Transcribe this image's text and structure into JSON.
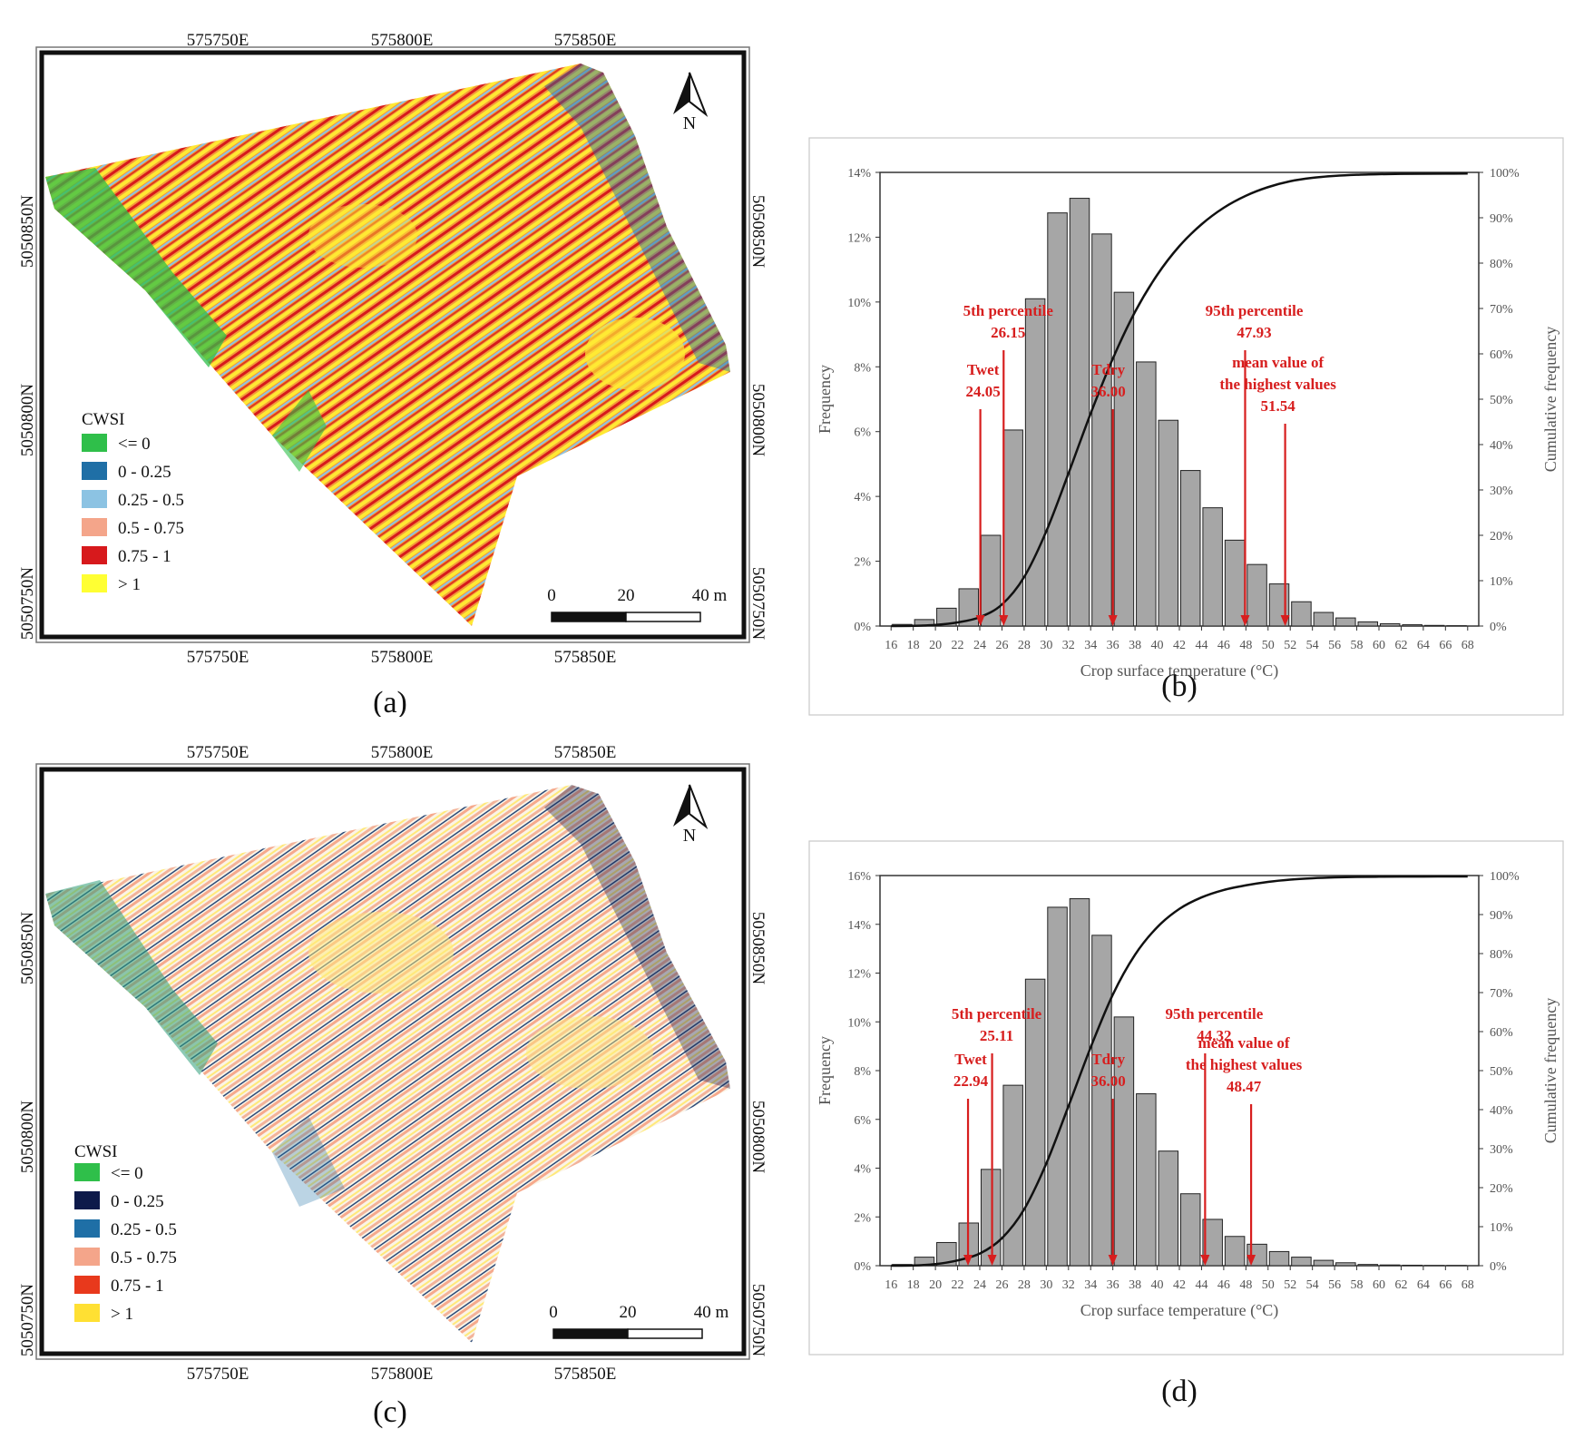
{
  "panels": {
    "a": {
      "label": "(a)",
      "coords_top": [
        "575750E",
        "575800E",
        "575850E"
      ],
      "coords_bottom": [
        "575750E",
        "575800E",
        "575850E"
      ],
      "coords_left": [
        "5050850N",
        "5050800N",
        "5050750N"
      ],
      "coords_right": [
        "5050850N",
        "5050800N",
        "5050750N"
      ],
      "north": "N",
      "legend_title": "CWSI",
      "legend": [
        {
          "label": "<= 0",
          "color": "#2fbf4a"
        },
        {
          "label": "0 - 0.25",
          "color": "#1f6fa6"
        },
        {
          "label": "0.25 - 0.5",
          "color": "#8cc3e3"
        },
        {
          "label": "0.5 - 0.75",
          "color": "#f4a58a"
        },
        {
          "label": "0.75 - 1",
          "color": "#d7191c"
        },
        {
          "label": "> 1",
          "color": "#ffff33"
        }
      ],
      "scale": [
        "0",
        "20",
        "40 m"
      ]
    },
    "c": {
      "label": "(c)",
      "coords_top": [
        "575750E",
        "575800E",
        "575850E"
      ],
      "coords_bottom": [
        "575750E",
        "575800E",
        "575850E"
      ],
      "coords_left": [
        "5050850N",
        "5050800N",
        "5050750N"
      ],
      "coords_right": [
        "5050850N",
        "5050800N",
        "5050750N"
      ],
      "north": "N",
      "legend_title": "CWSI",
      "legend": [
        {
          "label": "<= 0",
          "color": "#2fbf4a"
        },
        {
          "label": "0 - 0.25",
          "color": "#0d1a4a"
        },
        {
          "label": "0.25 - 0.5",
          "color": "#1f6fa6"
        },
        {
          "label": "0.5 - 0.75",
          "color": "#f4a58a"
        },
        {
          "label": "0.75 - 1",
          "color": "#e8391c"
        },
        {
          "label": "> 1",
          "color": "#ffe033"
        }
      ],
      "scale": [
        "0",
        "20",
        "40 m"
      ]
    }
  },
  "chart_data": [
    {
      "panel": "(b)",
      "type": "bar",
      "xlabel": "Crop surface temperature (°C)",
      "ylabel": "Frequency",
      "y2label": "Cumulative frequency",
      "x_ticks": [
        16,
        18,
        20,
        22,
        24,
        26,
        28,
        30,
        32,
        34,
        36,
        38,
        40,
        42,
        44,
        46,
        48,
        50,
        52,
        54,
        56,
        58,
        60,
        62,
        64,
        66,
        68
      ],
      "x_range": [
        15,
        69
      ],
      "ylim": [
        0,
        14
      ],
      "y_ticks": [
        "0%",
        "2%",
        "4%",
        "6%",
        "8%",
        "10%",
        "12%",
        "14%"
      ],
      "y2_ticks": [
        "0%",
        "10%",
        "20%",
        "30%",
        "40%",
        "50%",
        "60%",
        "70%",
        "80%",
        "90%",
        "100%"
      ],
      "bars": {
        "x": [
          17,
          19,
          21,
          23,
          25,
          27,
          29,
          31,
          33,
          35,
          37,
          39,
          41,
          43,
          45,
          47,
          49,
          51,
          53,
          55,
          57,
          59,
          61,
          63,
          65,
          67
        ],
        "values": [
          0.05,
          0.2,
          0.55,
          1.15,
          2.8,
          6.05,
          10.1,
          12.75,
          13.2,
          12.1,
          10.3,
          8.15,
          6.35,
          4.8,
          3.65,
          2.65,
          1.9,
          1.3,
          0.75,
          0.42,
          0.25,
          0.13,
          0.07,
          0.04,
          0.02,
          0.01
        ]
      },
      "cumulative": {
        "x": [
          16,
          18,
          20,
          22,
          24,
          26,
          28,
          30,
          32,
          34,
          36,
          38,
          40,
          42,
          44,
          46,
          48,
          50,
          52,
          54,
          56,
          58,
          60,
          62,
          64,
          66,
          68
        ],
        "values": [
          0,
          0.05,
          0.25,
          0.8,
          1.95,
          4.75,
          10.8,
          20.9,
          33.65,
          46.85,
          58.95,
          69.25,
          77.4,
          83.75,
          88.55,
          92.2,
          94.85,
          96.75,
          98.05,
          98.8,
          99.22,
          99.47,
          99.6,
          99.67,
          99.71,
          99.73,
          99.74
        ]
      },
      "annotations": [
        {
          "lines": [
            "5th percentile",
            "26.15"
          ],
          "x": 26.15
        },
        {
          "lines": [
            "Twet",
            "24.05"
          ],
          "x": 24.05
        },
        {
          "lines": [
            "Tdry",
            "36.00"
          ],
          "x": 36.0
        },
        {
          "lines": [
            "95th percentile",
            "47.93"
          ],
          "x": 47.93
        },
        {
          "lines": [
            "mean value of",
            "the highest values",
            "51.54"
          ],
          "x": 51.54
        }
      ]
    },
    {
      "panel": "(d)",
      "type": "bar",
      "xlabel": "Crop surface temperature (°C)",
      "ylabel": "Frequency",
      "y2label": "Cumulative frequency",
      "x_ticks": [
        16,
        18,
        20,
        22,
        24,
        26,
        28,
        30,
        32,
        34,
        36,
        38,
        40,
        42,
        44,
        46,
        48,
        50,
        52,
        54,
        56,
        58,
        60,
        62,
        64,
        66,
        68
      ],
      "x_range": [
        15,
        69
      ],
      "ylim": [
        0,
        16
      ],
      "y_ticks": [
        "0%",
        "2%",
        "4%",
        "6%",
        "8%",
        "10%",
        "12%",
        "14%",
        "16%"
      ],
      "y2_ticks": [
        "0%",
        "10%",
        "20%",
        "30%",
        "40%",
        "50%",
        "60%",
        "70%",
        "80%",
        "90%",
        "100%"
      ],
      "bars": {
        "x": [
          17,
          19,
          21,
          23,
          25,
          27,
          29,
          31,
          33,
          35,
          37,
          39,
          41,
          43,
          45,
          47,
          49,
          51,
          53,
          55,
          57,
          59,
          61,
          63,
          65,
          67
        ],
        "values": [
          0.05,
          0.35,
          0.95,
          1.75,
          3.95,
          7.4,
          11.75,
          14.7,
          15.05,
          13.55,
          10.2,
          7.05,
          4.7,
          2.95,
          1.9,
          1.2,
          0.88,
          0.58,
          0.35,
          0.22,
          0.12,
          0.05,
          0.03,
          0.02,
          0.01,
          0.01
        ]
      },
      "cumulative": {
        "x": [
          16,
          18,
          20,
          22,
          24,
          26,
          28,
          30,
          32,
          34,
          36,
          38,
          40,
          42,
          44,
          46,
          48,
          50,
          52,
          54,
          56,
          58,
          60,
          62,
          64,
          66,
          68
        ],
        "values": [
          0,
          0.05,
          0.4,
          1.35,
          3.1,
          7.05,
          14.45,
          26.2,
          40.9,
          55.95,
          69.5,
          79.7,
          86.75,
          91.45,
          94.4,
          96.3,
          97.5,
          98.38,
          98.96,
          99.31,
          99.53,
          99.65,
          99.7,
          99.73,
          99.75,
          99.76,
          99.77
        ]
      },
      "annotations": [
        {
          "lines": [
            "5th percentile",
            "25.11"
          ],
          "x": 25.11
        },
        {
          "lines": [
            "Twet",
            "22.94"
          ],
          "x": 22.94
        },
        {
          "lines": [
            "Tdry",
            "36.00"
          ],
          "x": 36.0
        },
        {
          "lines": [
            "95th percentile",
            "44.32"
          ],
          "x": 44.32
        },
        {
          "lines": [
            "mean value of",
            "the highest values",
            "48.47"
          ],
          "x": 48.47
        }
      ]
    }
  ],
  "panel_labels": {
    "b": "(b)",
    "d": "(d)"
  }
}
